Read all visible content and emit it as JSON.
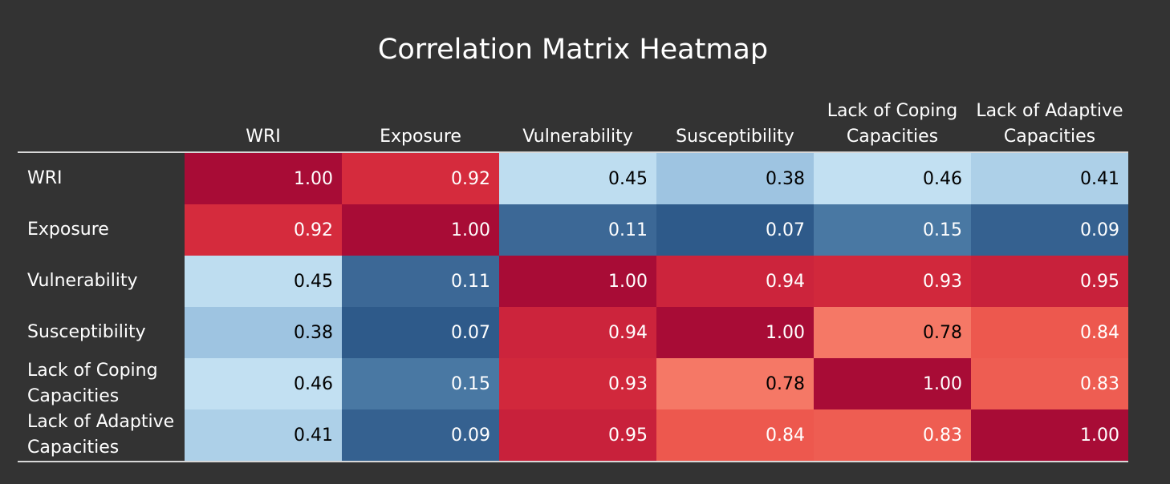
{
  "chart_data": {
    "type": "heatmap",
    "title": "Correlation Matrix Heatmap",
    "xlabel": "",
    "ylabel": "",
    "columns": [
      "WRI",
      "Exposure",
      "Vulnerability",
      "Susceptibility",
      "Lack of Coping Capacities",
      "Lack of Adaptive Capacities"
    ],
    "rows": [
      "WRI",
      "Exposure",
      "Vulnerability",
      "Susceptibility",
      "Lack of Coping Capacities",
      "Lack of Adaptive Capacities"
    ],
    "values": [
      [
        1.0,
        0.92,
        0.45,
        0.38,
        0.46,
        0.41
      ],
      [
        0.92,
        1.0,
        0.11,
        0.07,
        0.15,
        0.09
      ],
      [
        0.45,
        0.11,
        1.0,
        0.94,
        0.93,
        0.95
      ],
      [
        0.38,
        0.07,
        0.94,
        1.0,
        0.78,
        0.84
      ],
      [
        0.46,
        0.15,
        0.93,
        0.78,
        1.0,
        0.83
      ],
      [
        0.41,
        0.09,
        0.95,
        0.84,
        0.83,
        1.0
      ]
    ],
    "value_format": "0.00",
    "colormap": "RdBu_r",
    "color_range": [
      0,
      1
    ],
    "legend": "none"
  },
  "colors": {
    "background": "#333333",
    "text_light": "#ffffff",
    "text_dark": "#000000",
    "rule": "#d8d8d8"
  }
}
